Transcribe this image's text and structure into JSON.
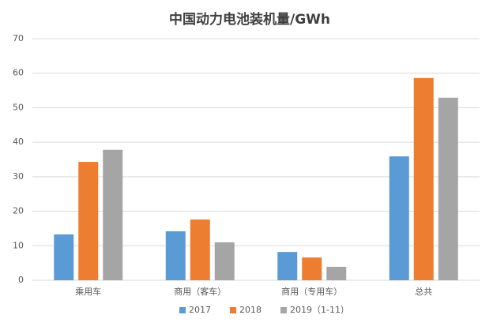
{
  "chart_data": {
    "type": "bar",
    "title": "中国动力电池装机量/GWh",
    "categories": [
      "乘用车",
      "商用（客车）",
      "商用（专用车）",
      "总共"
    ],
    "series": [
      {
        "name": "2017",
        "color": "#5b9bd5",
        "values": [
          13.3,
          14.2,
          8.2,
          35.9
        ]
      },
      {
        "name": "2018",
        "color": "#ed7d31",
        "values": [
          34.3,
          17.6,
          6.6,
          58.6
        ]
      },
      {
        "name": "2019（1-11）",
        "color": "#a5a5a5",
        "values": [
          37.8,
          11.0,
          3.9,
          52.9
        ]
      }
    ],
    "ylim": [
      0,
      70
    ],
    "yticks": [
      0,
      10,
      20,
      30,
      40,
      50,
      60,
      70
    ],
    "grid": true,
    "legend": "bottom"
  }
}
